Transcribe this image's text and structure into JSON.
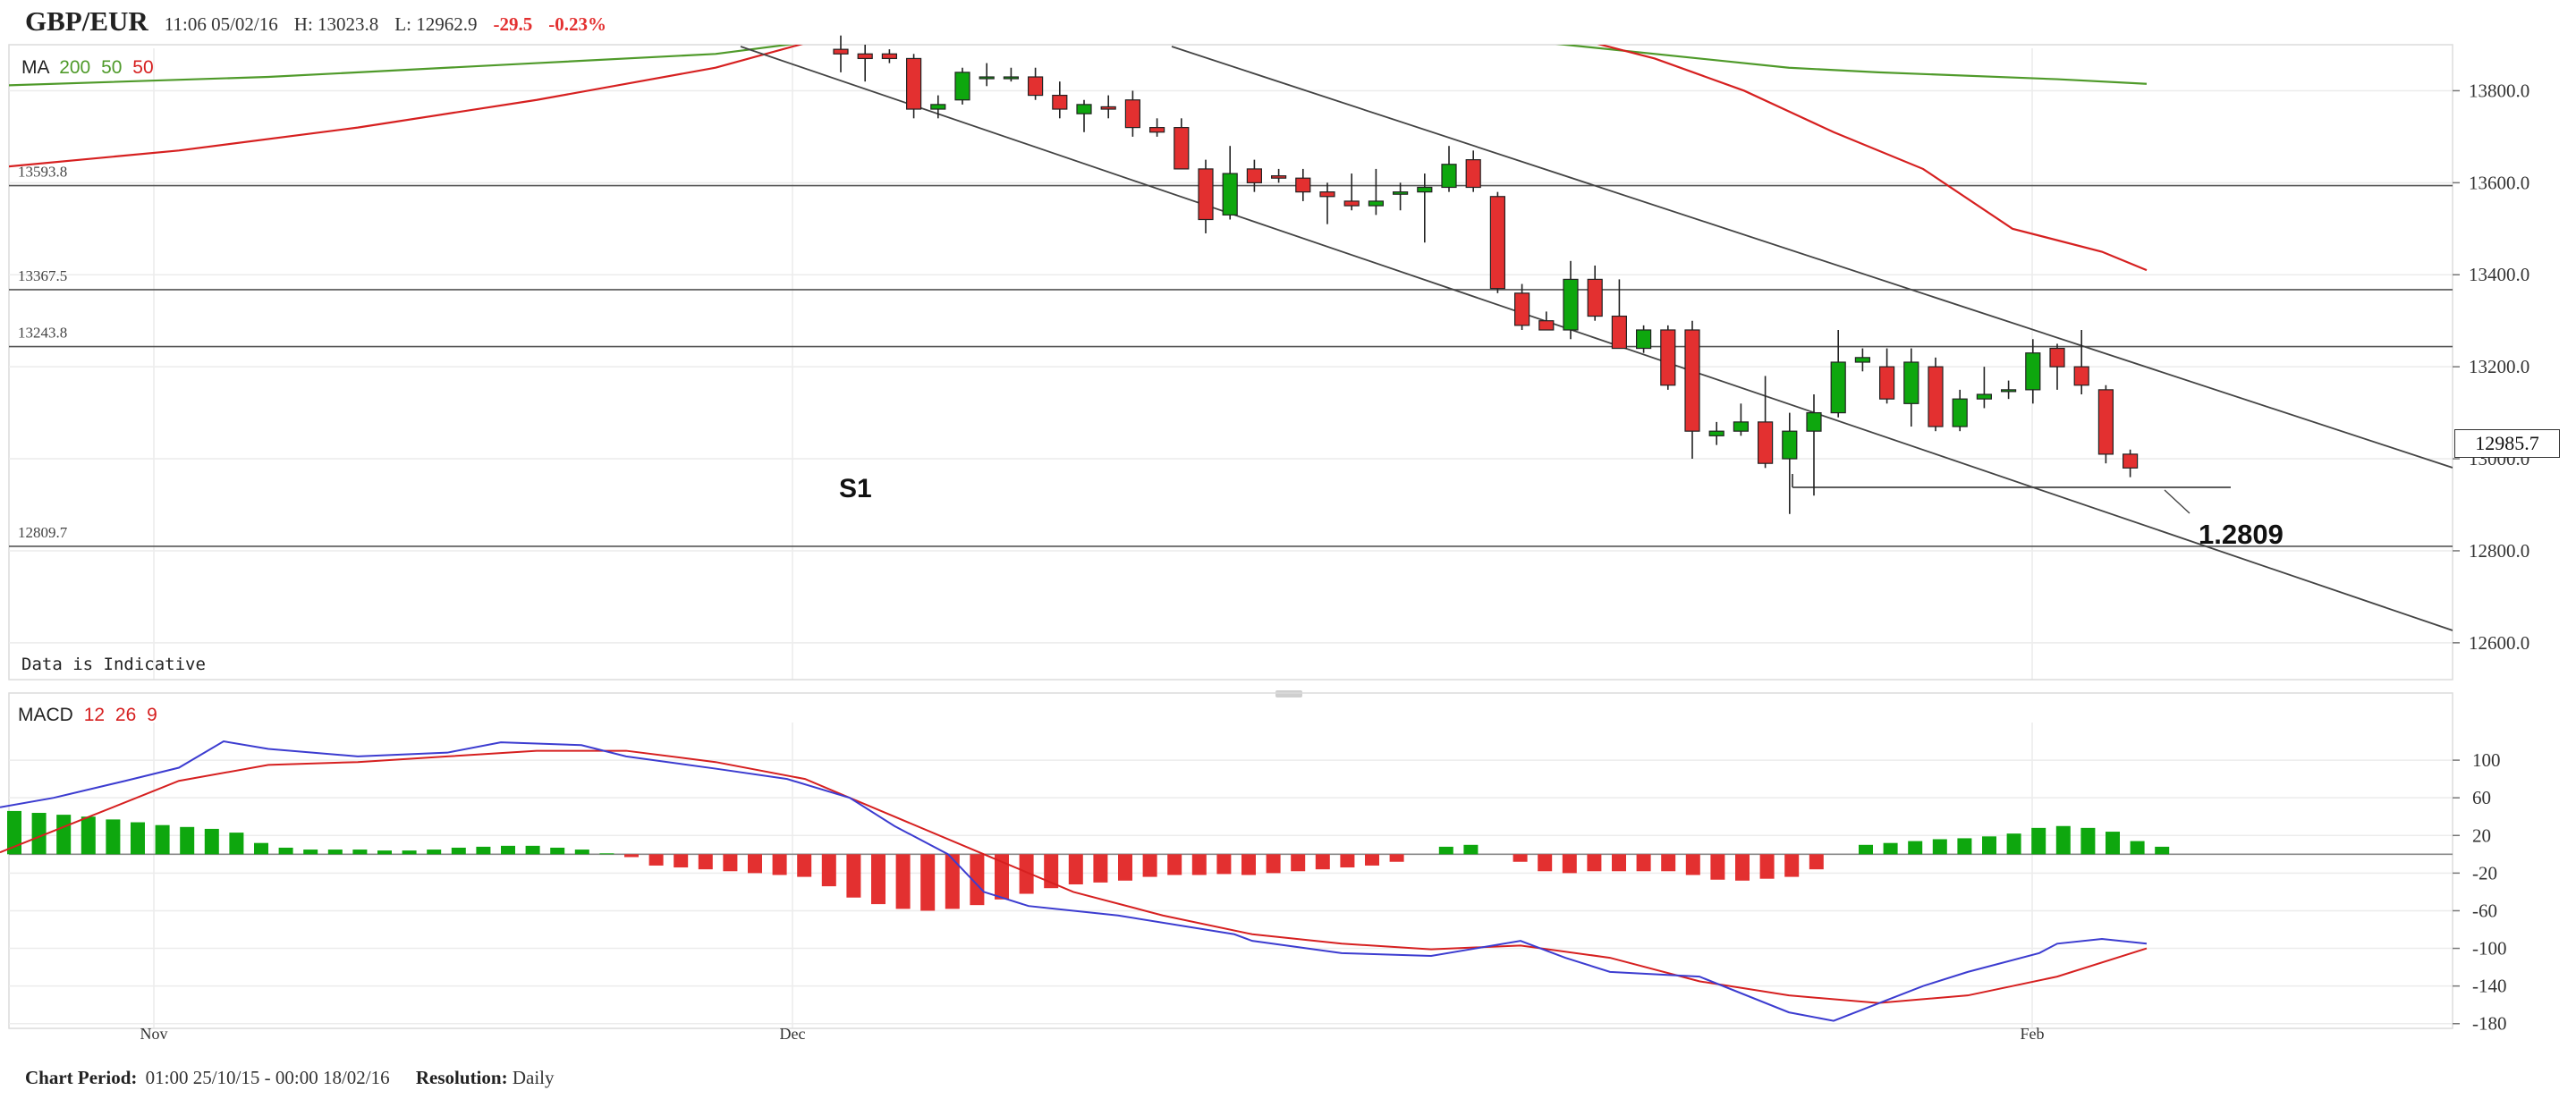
{
  "header": {
    "symbol": "GBP/EUR",
    "timestamp": "11:06 05/02/16",
    "high_label": "H: 13023.8",
    "low_label": "L: 12962.9",
    "change": "-29.5",
    "change_pct": "-0.23%"
  },
  "ma_legend": {
    "label": "MA",
    "p1": "200",
    "p2": "50",
    "p3": "50"
  },
  "macd_legend": {
    "label": "MACD",
    "p1": "12",
    "p2": "26",
    "p3": "9"
  },
  "indicative_note": "Data is Indicative",
  "footer": {
    "period_label": "Chart Period:",
    "period_value": "01:00 25/10/15 - 00:00 18/02/16",
    "resolution_label": "Resolution:",
    "resolution_value": "Daily"
  },
  "annotations": {
    "s1": "S1",
    "target": "1.2809"
  },
  "colors": {
    "up": "#0ea70e",
    "down": "#e33030",
    "ma200": "#4f9a2a",
    "ma50": "#d62020",
    "macd": "#3c3cd0",
    "signal": "#d62020",
    "header_change": "#e33030"
  },
  "chart_data": [
    {
      "type": "candlestick",
      "x_tick_labels": [
        "Nov",
        "Dec",
        "Feb"
      ],
      "ylim": [
        12520,
        13900
      ],
      "y_ticks": [
        12600,
        12800,
        13000,
        13200,
        13400,
        13600,
        13800
      ],
      "y_tick_labels": [
        "12600.0",
        "12800.0",
        "13000.0",
        "13200.0",
        "13400.0",
        "13600.0",
        "13800.0"
      ],
      "current_price": "12985.7",
      "levels": [
        {
          "value": 13593.8,
          "label": "13593.8"
        },
        {
          "value": 13367.5,
          "label": "13367.5"
        },
        {
          "value": 13243.8,
          "label": "13243.8"
        },
        {
          "value": 12809.7,
          "label": "12809.7"
        }
      ],
      "candles": [
        [
          13890,
          13920,
          13840,
          13880
        ],
        [
          13880,
          13900,
          13820,
          13870
        ],
        [
          13880,
          13890,
          13860,
          13870
        ],
        [
          13870,
          13880,
          13740,
          13760
        ],
        [
          13760,
          13790,
          13740,
          13770
        ],
        [
          13780,
          13850,
          13770,
          13840
        ],
        [
          13830,
          13860,
          13810,
          13830
        ],
        [
          13830,
          13850,
          13820,
          13830
        ],
        [
          13830,
          13850,
          13780,
          13790
        ],
        [
          13790,
          13820,
          13740,
          13760
        ],
        [
          13750,
          13780,
          13710,
          13770
        ],
        [
          13765,
          13790,
          13740,
          13760
        ],
        [
          13780,
          13800,
          13700,
          13720
        ],
        [
          13720,
          13740,
          13700,
          13710
        ],
        [
          13720,
          13740,
          13640,
          13630
        ],
        [
          13630,
          13650,
          13490,
          13520
        ],
        [
          13530,
          13680,
          13520,
          13620
        ],
        [
          13630,
          13650,
          13580,
          13600
        ],
        [
          13615,
          13630,
          13600,
          13610
        ],
        [
          13610,
          13630,
          13560,
          13580
        ],
        [
          13580,
          13600,
          13510,
          13570
        ],
        [
          13560,
          13620,
          13540,
          13550
        ],
        [
          13550,
          13630,
          13530,
          13560
        ],
        [
          13575,
          13600,
          13540,
          13580
        ],
        [
          13580,
          13620,
          13470,
          13590
        ],
        [
          13590,
          13680,
          13580,
          13640
        ],
        [
          13650,
          13670,
          13580,
          13590
        ],
        [
          13570,
          13580,
          13360,
          13370
        ],
        [
          13360,
          13380,
          13280,
          13290
        ],
        [
          13300,
          13320,
          13280,
          13280
        ],
        [
          13280,
          13430,
          13260,
          13390
        ],
        [
          13390,
          13420,
          13300,
          13310
        ],
        [
          13310,
          13390,
          13240,
          13240
        ],
        [
          13240,
          13290,
          13230,
          13280
        ],
        [
          13280,
          13290,
          13150,
          13160
        ],
        [
          13280,
          13300,
          13000,
          13060
        ],
        [
          13050,
          13080,
          13030,
          13060
        ],
        [
          13060,
          13120,
          13050,
          13080
        ],
        [
          13080,
          13180,
          12980,
          12990
        ],
        [
          13000,
          13100,
          12880,
          13060
        ],
        [
          13060,
          13140,
          12920,
          13100
        ],
        [
          13100,
          13280,
          13090,
          13210
        ],
        [
          13210,
          13240,
          13190,
          13220
        ],
        [
          13200,
          13240,
          13120,
          13130
        ],
        [
          13120,
          13240,
          13070,
          13210
        ],
        [
          13200,
          13220,
          13060,
          13070
        ],
        [
          13070,
          13150,
          13060,
          13130
        ],
        [
          13130,
          13200,
          13110,
          13140
        ],
        [
          13150,
          13170,
          13130,
          13150
        ],
        [
          13150,
          13260,
          13120,
          13230
        ],
        [
          13240,
          13250,
          13150,
          13200
        ],
        [
          13200,
          13280,
          13140,
          13160
        ],
        [
          13150,
          13160,
          12990,
          13010
        ],
        [
          13010,
          13020,
          12960,
          12980
        ]
      ],
      "ma200": [
        [
          -20,
          13810
        ],
        [
          300,
          13830
        ],
        [
          600,
          13860
        ],
        [
          800,
          13880
        ],
        [
          1000,
          13930
        ],
        [
          1700,
          13910
        ],
        [
          1900,
          13870
        ],
        [
          2000,
          13850
        ],
        [
          2100,
          13840
        ],
        [
          2300,
          13825
        ],
        [
          2400,
          13815
        ]
      ],
      "ma50": [
        [
          -20,
          13630
        ],
        [
          200,
          13670
        ],
        [
          400,
          13720
        ],
        [
          600,
          13780
        ],
        [
          800,
          13850
        ],
        [
          950,
          13930
        ],
        [
          1750,
          13920
        ],
        [
          1850,
          13870
        ],
        [
          1950,
          13800
        ],
        [
          2050,
          13710
        ],
        [
          2150,
          13630
        ],
        [
          2250,
          13500
        ],
        [
          2350,
          13450
        ],
        [
          2400,
          13410
        ]
      ]
    },
    {
      "type": "macd",
      "ylim": [
        -185,
        140
      ],
      "y_ticks": [
        100,
        60,
        20,
        -20,
        -60,
        -100,
        -140,
        -180
      ],
      "y_tick_labels": [
        "100",
        "60",
        "20",
        "-20",
        "-60",
        "-100",
        "-140",
        "-180"
      ],
      "histogram": [
        46,
        44,
        42,
        40,
        37,
        34,
        31,
        29,
        27,
        23,
        12,
        7,
        5,
        5,
        5,
        4,
        4,
        5,
        7,
        8,
        9,
        9,
        7,
        5,
        1,
        -3,
        -12,
        -14,
        -16,
        -18,
        -20,
        -22,
        -24,
        -34,
        -46,
        -53,
        -58,
        -60,
        -58,
        -54,
        -48,
        -42,
        -36,
        -32,
        -30,
        -28,
        -24,
        -22,
        -22,
        -21,
        -22,
        -20,
        -18,
        -16,
        -14,
        -12,
        -8,
        0,
        8,
        10,
        0,
        -8,
        -18,
        -20,
        -18,
        -18,
        -18,
        -18,
        -22,
        -27,
        -28,
        -26,
        -24,
        -16,
        0,
        10,
        12,
        14,
        16,
        17,
        19,
        22,
        28,
        30,
        28,
        24,
        14,
        8
      ],
      "macd_line": [
        [
          0,
          50
        ],
        [
          60,
          60
        ],
        [
          140,
          78
        ],
        [
          200,
          92
        ],
        [
          250,
          120
        ],
        [
          300,
          112
        ],
        [
          400,
          104
        ],
        [
          500,
          108
        ],
        [
          560,
          119
        ],
        [
          650,
          116
        ],
        [
          700,
          104
        ],
        [
          800,
          91
        ],
        [
          880,
          80
        ],
        [
          950,
          60
        ],
        [
          1000,
          30
        ],
        [
          1060,
          0
        ],
        [
          1100,
          -40
        ],
        [
          1150,
          -55
        ],
        [
          1250,
          -65
        ],
        [
          1380,
          -85
        ],
        [
          1400,
          -92
        ],
        [
          1500,
          -105
        ],
        [
          1600,
          -108
        ],
        [
          1650,
          -100
        ],
        [
          1700,
          -92
        ],
        [
          1750,
          -110
        ],
        [
          1800,
          -125
        ],
        [
          1900,
          -130
        ],
        [
          2000,
          -168
        ],
        [
          2050,
          -177
        ],
        [
          2150,
          -140
        ],
        [
          2200,
          -125
        ],
        [
          2280,
          -105
        ],
        [
          2300,
          -95
        ],
        [
          2350,
          -90
        ],
        [
          2400,
          -95
        ]
      ],
      "signal_line": [
        [
          0,
          2
        ],
        [
          100,
          40
        ],
        [
          200,
          78
        ],
        [
          300,
          95
        ],
        [
          400,
          98
        ],
        [
          500,
          104
        ],
        [
          600,
          110
        ],
        [
          700,
          110
        ],
        [
          800,
          98
        ],
        [
          900,
          80
        ],
        [
          1000,
          40
        ],
        [
          1100,
          0
        ],
        [
          1200,
          -40
        ],
        [
          1300,
          -65
        ],
        [
          1400,
          -85
        ],
        [
          1500,
          -95
        ],
        [
          1600,
          -101
        ],
        [
          1700,
          -97
        ],
        [
          1800,
          -110
        ],
        [
          1900,
          -135
        ],
        [
          2000,
          -150
        ],
        [
          2100,
          -158
        ],
        [
          2200,
          -150
        ],
        [
          2300,
          -130
        ],
        [
          2400,
          -100
        ]
      ]
    }
  ]
}
